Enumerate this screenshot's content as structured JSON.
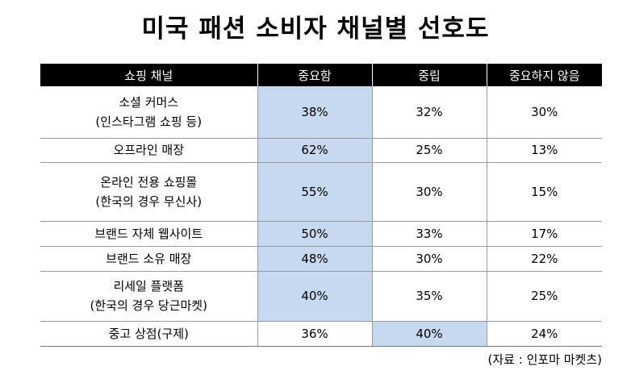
{
  "title": "미국 패션 소비자 채널별 선호도",
  "table": {
    "headers": [
      "쇼핑 채널",
      "중요함",
      "중립",
      "중요하지 않음"
    ],
    "rows": [
      {
        "channel": [
          "소셜 커머스",
          "(인스타그램 쇼핑 등)"
        ],
        "important": "38%",
        "neutral": "32%",
        "not_important": "30%",
        "highlight": "important"
      },
      {
        "channel": [
          "오프라인 매장"
        ],
        "important": "62%",
        "neutral": "25%",
        "not_important": "13%",
        "highlight": "important"
      },
      {
        "channel": [
          "온라인 전용 쇼핑몰",
          "(한국의 경우 무신사)"
        ],
        "important": "55%",
        "neutral": "30%",
        "not_important": "15%",
        "highlight": "important"
      },
      {
        "channel": [
          "브랜드 자체 웹사이트"
        ],
        "important": "50%",
        "neutral": "33%",
        "not_important": "17%",
        "highlight": "important"
      },
      {
        "channel": [
          "브랜드 소유 매장"
        ],
        "important": "48%",
        "neutral": "30%",
        "not_important": "22%",
        "highlight": "important"
      },
      {
        "channel": [
          "리세일 플랫폼",
          "(한국의 경우 당근마켓)"
        ],
        "important": "40%",
        "neutral": "35%",
        "not_important": "25%",
        "highlight": "important"
      },
      {
        "channel": [
          "중고 상점(구제)"
        ],
        "important": "36%",
        "neutral": "40%",
        "not_important": "24%",
        "highlight": "neutral"
      }
    ],
    "highlight_color": "#c6d9f1"
  },
  "source": "(자료 : 인포마 마켓츠)"
}
